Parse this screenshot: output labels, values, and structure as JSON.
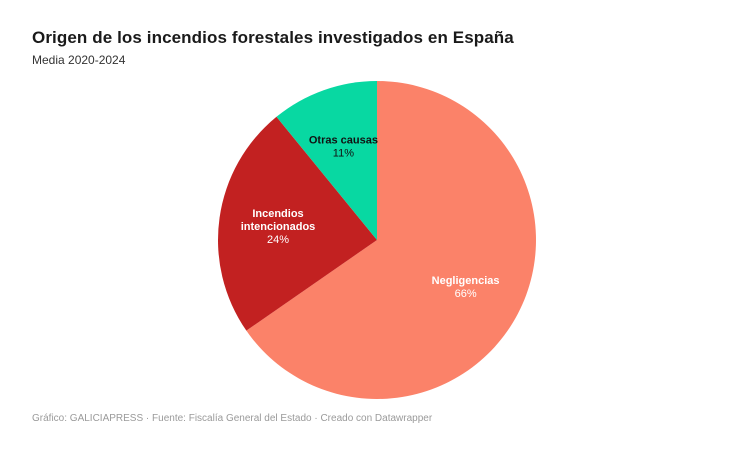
{
  "header": {
    "title": "Origen de los incendios forestales investigados en España",
    "subtitle": "Media 2020-2024"
  },
  "footer": {
    "credit": "Gráfico: GALICIAPRESS · Fuente: Fiscalía General del Estado · Creado con Datawrapper"
  },
  "colors": {
    "background": "#ffffff",
    "title_text": "#1a1a1a",
    "subtitle_text": "#333333",
    "footer_text": "#9a9a9a"
  },
  "chart_data": {
    "type": "pie",
    "title": "Origen de los incendios forestales investigados en España",
    "subtitle": "Media 2020-2024",
    "legend_position": "labels-inside-slices",
    "start_angle_deg": 0,
    "direction": "clockwise",
    "slices": [
      {
        "name": "Negligencias",
        "value": 66,
        "value_label": "66%",
        "label_lines": [
          "Negligencias"
        ],
        "color": "#FB8269",
        "label_color": "#ffffff"
      },
      {
        "name": "Incendios intencionados",
        "value": 24,
        "value_label": "24%",
        "label_lines": [
          "Incendios",
          "intencionados"
        ],
        "color": "#C22121",
        "label_color": "#ffffff"
      },
      {
        "name": "Otras causas",
        "value": 11,
        "value_label": "11%",
        "label_lines": [
          "Otras causas"
        ],
        "color": "#08D8A2",
        "label_color": "#111111"
      }
    ]
  }
}
